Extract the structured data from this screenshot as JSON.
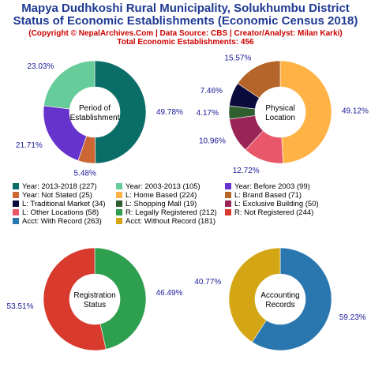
{
  "header": {
    "title_line1": "Mapya Dudhkoshi Rural Municipality, Solukhumbu District",
    "title_line2": "Status of Economic Establishments (Economic Census 2018)",
    "subtitle": "(Copyright © NepalArchives.Com | Data Source: CBS | Creator/Analyst: Milan Karki)",
    "total": "Total Economic Establishments: 456"
  },
  "legend": [
    {
      "label": "Year: 2013-2018 (227)",
      "color": "#0b6d67"
    },
    {
      "label": "Year: 2003-2013 (105)",
      "color": "#66cc99"
    },
    {
      "label": "Year: Before 2003 (99)",
      "color": "#6633cc"
    },
    {
      "label": "Year: Not Stated (25)",
      "color": "#cc6633"
    },
    {
      "label": "L: Home Based (224)",
      "color": "#ffb347"
    },
    {
      "label": "L: Brand Based (71)",
      "color": "#b5652a"
    },
    {
      "label": "L: Traditional Market (34)",
      "color": "#0a0a3c"
    },
    {
      "label": "L: Shopping Mall (19)",
      "color": "#2f5e2f"
    },
    {
      "label": "L: Exclusive Building (50)",
      "color": "#9b2457"
    },
    {
      "label": "L: Other Locations (58)",
      "color": "#e8586a"
    },
    {
      "label": "R: Legally Registered (212)",
      "color": "#2e9e4f"
    },
    {
      "label": "R: Not Registered (244)",
      "color": "#d93a2e"
    },
    {
      "label": "Acct: With Record (263)",
      "color": "#2a77b0"
    },
    {
      "label": "Acct: Without Record (181)",
      "color": "#d4a615"
    }
  ],
  "chart_data": [
    {
      "type": "pie",
      "center_label": [
        "Period of",
        "Establishment"
      ],
      "slices": [
        {
          "name": "Year: 2013-2018",
          "value": 227,
          "pct_label": "49.78%",
          "color": "#0b6d67"
        },
        {
          "name": "Year: Not Stated",
          "value": 25,
          "pct_label": "5.48%",
          "color": "#cc6633"
        },
        {
          "name": "Year: Before 2003",
          "value": 99,
          "pct_label": "21.71%",
          "color": "#6633cc"
        },
        {
          "name": "Year: 2003-2013",
          "value": 105,
          "pct_label": "23.03%",
          "color": "#66cc99"
        }
      ]
    },
    {
      "type": "pie",
      "center_label": [
        "Physical",
        "Location"
      ],
      "slices": [
        {
          "name": "L: Home Based",
          "value": 224,
          "pct_label": "49.12%",
          "color": "#ffb347"
        },
        {
          "name": "L: Other Locations",
          "value": 58,
          "pct_label": "12.72%",
          "color": "#e8586a"
        },
        {
          "name": "L: Exclusive Building",
          "value": 50,
          "pct_label": "10.96%",
          "color": "#9b2457"
        },
        {
          "name": "L: Shopping Mall",
          "value": 19,
          "pct_label": "4.17%",
          "color": "#2f5e2f"
        },
        {
          "name": "L: Traditional Market",
          "value": 34,
          "pct_label": "7.46%",
          "color": "#0a0a3c"
        },
        {
          "name": "L: Brand Based",
          "value": 71,
          "pct_label": "15.57%",
          "color": "#b5652a"
        }
      ]
    },
    {
      "type": "pie",
      "center_label": [
        "Registration",
        "Status"
      ],
      "slices": [
        {
          "name": "R: Legally Registered",
          "value": 212,
          "pct_label": "46.49%",
          "color": "#2e9e4f"
        },
        {
          "name": "R: Not Registered",
          "value": 244,
          "pct_label": "53.51%",
          "color": "#d93a2e"
        }
      ]
    },
    {
      "type": "pie",
      "center_label": [
        "Accounting",
        "Records"
      ],
      "slices": [
        {
          "name": "Acct: With Record",
          "value": 263,
          "pct_label": "59.23%",
          "color": "#2a77b0"
        },
        {
          "name": "Acct: Without Record",
          "value": 181,
          "pct_label": "40.77%",
          "color": "#d4a615"
        }
      ]
    }
  ]
}
